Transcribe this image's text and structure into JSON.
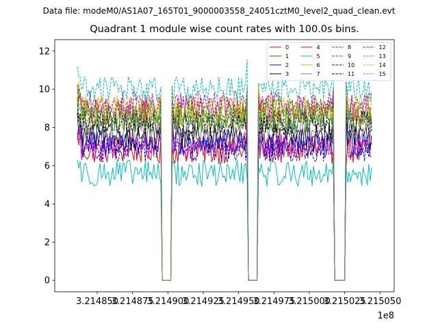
{
  "suptitle": "Data file: modeM0/AS1A07_165T01_9000003558_24051cztM0_level2_quad_clean.evt",
  "chart_data": {
    "type": "line",
    "title": "Quadrant 1 module wise count rates with 100.0s bins.",
    "xlabel": "",
    "ylabel": "",
    "x_offset_label": "1e8",
    "x_ticks": [
      {
        "label": "3.214850",
        "value": 321485000
      },
      {
        "label": "3.214875",
        "value": 321487500
      },
      {
        "label": "3.214900",
        "value": 321490000
      },
      {
        "label": "3.214925",
        "value": 321492500
      },
      {
        "label": "3.214950",
        "value": 321495000
      },
      {
        "label": "3.214975",
        "value": 321497500
      },
      {
        "label": "3.215000",
        "value": 321500000
      },
      {
        "label": "3.215025",
        "value": 321502500
      },
      {
        "label": "3.215050",
        "value": 321505000
      }
    ],
    "y_ticks": [
      0,
      2,
      4,
      6,
      8,
      10,
      12
    ],
    "xlim": [
      321482000,
      321506000
    ],
    "ylim": [
      -0.6,
      12.6
    ],
    "legend_position": "top-right",
    "legend_columns": 4,
    "time_start": 321483600,
    "time_end": 321504400,
    "bin_seconds": 100,
    "gaps": [
      [
        321489600,
        321490200
      ],
      [
        321495700,
        321496300
      ],
      [
        321501800,
        321502500
      ]
    ],
    "series": [
      {
        "name": "0",
        "color": "#ff0000",
        "dashed": false,
        "level": 6.8
      },
      {
        "name": "1",
        "color": "#008000",
        "dashed": false,
        "level": 8.4
      },
      {
        "name": "2",
        "color": "#0000ff",
        "dashed": false,
        "level": 7.2
      },
      {
        "name": "3",
        "color": "#000000",
        "dashed": false,
        "level": 7.5
      },
      {
        "name": "4",
        "color": "#bf00bf",
        "dashed": false,
        "level": 7.0
      },
      {
        "name": "5",
        "color": "#00bfbf",
        "dashed": false,
        "level": 5.6
      },
      {
        "name": "6",
        "color": "#bfbf00",
        "dashed": false,
        "level": 8.6
      },
      {
        "name": "7",
        "color": "#808080",
        "dashed": false,
        "level": 7.8
      },
      {
        "name": "8",
        "color": "#ff0000",
        "dashed": true,
        "level": 9.0
      },
      {
        "name": "9",
        "color": "#008000",
        "dashed": true,
        "level": 8.8
      },
      {
        "name": "10",
        "color": "#0000ff",
        "dashed": true,
        "level": 6.9
      },
      {
        "name": "11",
        "color": "#000000",
        "dashed": true,
        "level": 8.2
      },
      {
        "name": "12",
        "color": "#bf00bf",
        "dashed": true,
        "level": 9.2
      },
      {
        "name": "13",
        "color": "#00bfbf",
        "dashed": true,
        "level": 10.0
      },
      {
        "name": "14",
        "color": "#bfbf00",
        "dashed": true,
        "level": 9.0
      },
      {
        "name": "15",
        "color": "#808080",
        "dashed": true,
        "level": 8.5
      }
    ]
  }
}
